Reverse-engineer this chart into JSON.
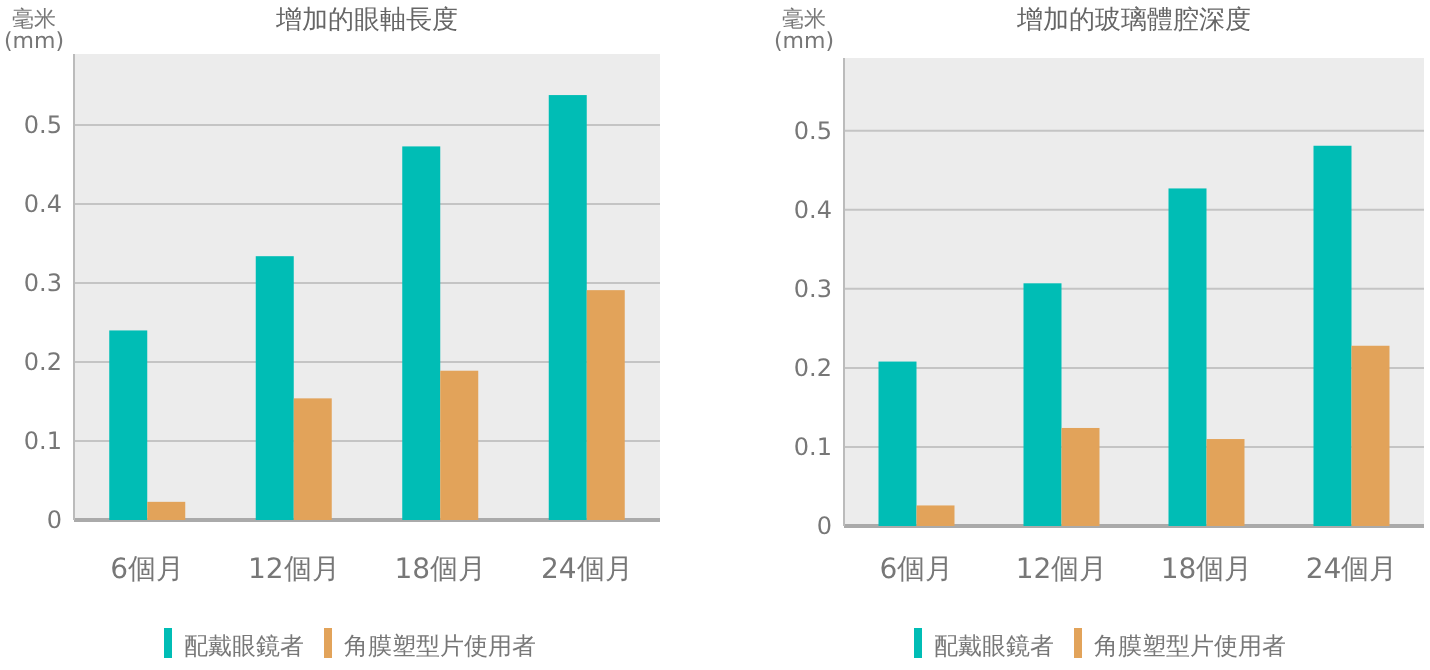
{
  "chart_data": [
    {
      "type": "bar",
      "title": "增加的眼軸長度",
      "ylabel": "毫米\n(mm)",
      "categories": [
        "6個月",
        "12個月",
        "18個月",
        "24個月"
      ],
      "series": [
        {
          "name": "配戴眼鏡者",
          "color": "#00bdb5",
          "values": [
            0.24,
            0.334,
            0.473,
            0.538
          ]
        },
        {
          "name": "角膜塑型片使用者",
          "color": "#e2a35a",
          "values": [
            0.023,
            0.154,
            0.189,
            0.291
          ]
        }
      ],
      "ylim": [
        0,
        0.59
      ],
      "yticks": [
        0,
        0.1,
        0.2,
        0.3,
        0.4,
        0.5
      ],
      "grid": "y",
      "legend": "bottom"
    },
    {
      "type": "bar",
      "title": "增加的玻璃體腔深度",
      "ylabel": "毫米\n(mm)",
      "categories": [
        "6個月",
        "12個月",
        "18個月",
        "24個月"
      ],
      "series": [
        {
          "name": "配戴眼鏡者",
          "color": "#00bdb5",
          "values": [
            0.208,
            0.307,
            0.427,
            0.481
          ]
        },
        {
          "name": "角膜塑型片使用者",
          "color": "#e2a35a",
          "values": [
            0.026,
            0.124,
            0.11,
            0.228
          ]
        }
      ],
      "ylim": [
        0,
        0.592
      ],
      "yticks": [
        0,
        0.1,
        0.2,
        0.3,
        0.4,
        0.5
      ],
      "grid": "y",
      "legend": "bottom"
    }
  ]
}
